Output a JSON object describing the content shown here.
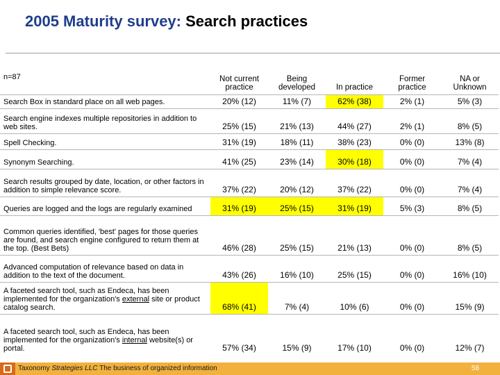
{
  "title": {
    "prefix": "2005 Maturity survey:",
    "main": "Search practices"
  },
  "table": {
    "n_label": "n=87",
    "headers": [
      "Not  current practice",
      "Being developed",
      "In practice",
      "Former practice",
      "NA or Unknown"
    ],
    "rows": [
      {
        "label": "Search Box in standard place on all web pages.",
        "cells": [
          "20%  (12)",
          "11%  (7)",
          "62%  (38)",
          "2%  (1)",
          "5%  (3)"
        ],
        "highlight": [
          false,
          false,
          true,
          false,
          false
        ]
      },
      {
        "label": "Search engine indexes multiple repositories in addition to web sites.",
        "cells": [
          "25%  (15)",
          "21%  (13)",
          "44%  (27)",
          "2%  (1)",
          "8%  (5)"
        ],
        "highlight": [
          false,
          false,
          false,
          false,
          false
        ]
      },
      {
        "label": "Spell Checking.",
        "cells": [
          "31%  (19)",
          "18%  (11)",
          "38%  (23)",
          "0%  (0)",
          "13%  (8)"
        ],
        "highlight": [
          false,
          false,
          false,
          false,
          false
        ]
      },
      {
        "label": "Synonym Searching.",
        "cells": [
          "41%  (25)",
          "23%  (14)",
          "30%  (18)",
          "0%  (0)",
          "7%  (4)"
        ],
        "highlight": [
          false,
          false,
          true,
          false,
          false
        ]
      },
      {
        "label": "Search results grouped by date, location, or other factors in addition to simple relevance score.",
        "cells": [
          "37%  (22)",
          "20%  (12)",
          "37%  (22)",
          "0%  (0)",
          "7%  (4)"
        ],
        "highlight": [
          false,
          false,
          false,
          false,
          false
        ]
      },
      {
        "label": "Queries are logged and the logs are regularly examined",
        "cells": [
          "31%  (19)",
          "25%  (15)",
          "31%  (19)",
          "5%  (3)",
          "8%  (5)"
        ],
        "highlight": [
          true,
          true,
          true,
          false,
          false
        ]
      },
      {
        "label": "Common queries identified, 'best' pages for those queries are found, and search engine configured to return them at the top. (Best Bets)",
        "cells": [
          "46%  (28)",
          "25%  (15)",
          "21%  (13)",
          "0%  (0)",
          "8%  (5)"
        ],
        "highlight": [
          false,
          false,
          false,
          false,
          false
        ]
      },
      {
        "label": "Advanced computation of relevance based on data in addition to the text of the document.",
        "cells": [
          "43%  (26)",
          "16%  (10)",
          "25%  (15)",
          "0%  (0)",
          "16%  (10)"
        ],
        "highlight": [
          false,
          false,
          false,
          false,
          false
        ]
      },
      {
        "label_parts": [
          "A faceted search tool, such as Endeca, has been implemented for the organization's ",
          "external",
          " site or product catalog search."
        ],
        "cells": [
          "68%  (41)",
          "7%  (4)",
          "10%  (6)",
          "0%  (0)",
          "15%  (9)"
        ],
        "highlight": [
          true,
          false,
          false,
          false,
          false
        ]
      },
      {
        "label_parts": [
          "A faceted search tool, such as Endeca, has been implemented for the organization's ",
          "internal",
          " website(s) or portal."
        ],
        "cells": [
          "57%  (34)",
          "15%  (9)",
          "17%  (10)",
          "0%  (0)",
          "12%  (7)"
        ],
        "highlight": [
          false,
          false,
          false,
          false,
          false
        ]
      }
    ]
  },
  "footer": {
    "company_a": "Taxonomy ",
    "company_b": "Strategies LLC",
    "tagline": "  The business of organized information",
    "page": "58",
    "bar_color": "#f2b13d",
    "logo_color": "#d86a1c"
  }
}
